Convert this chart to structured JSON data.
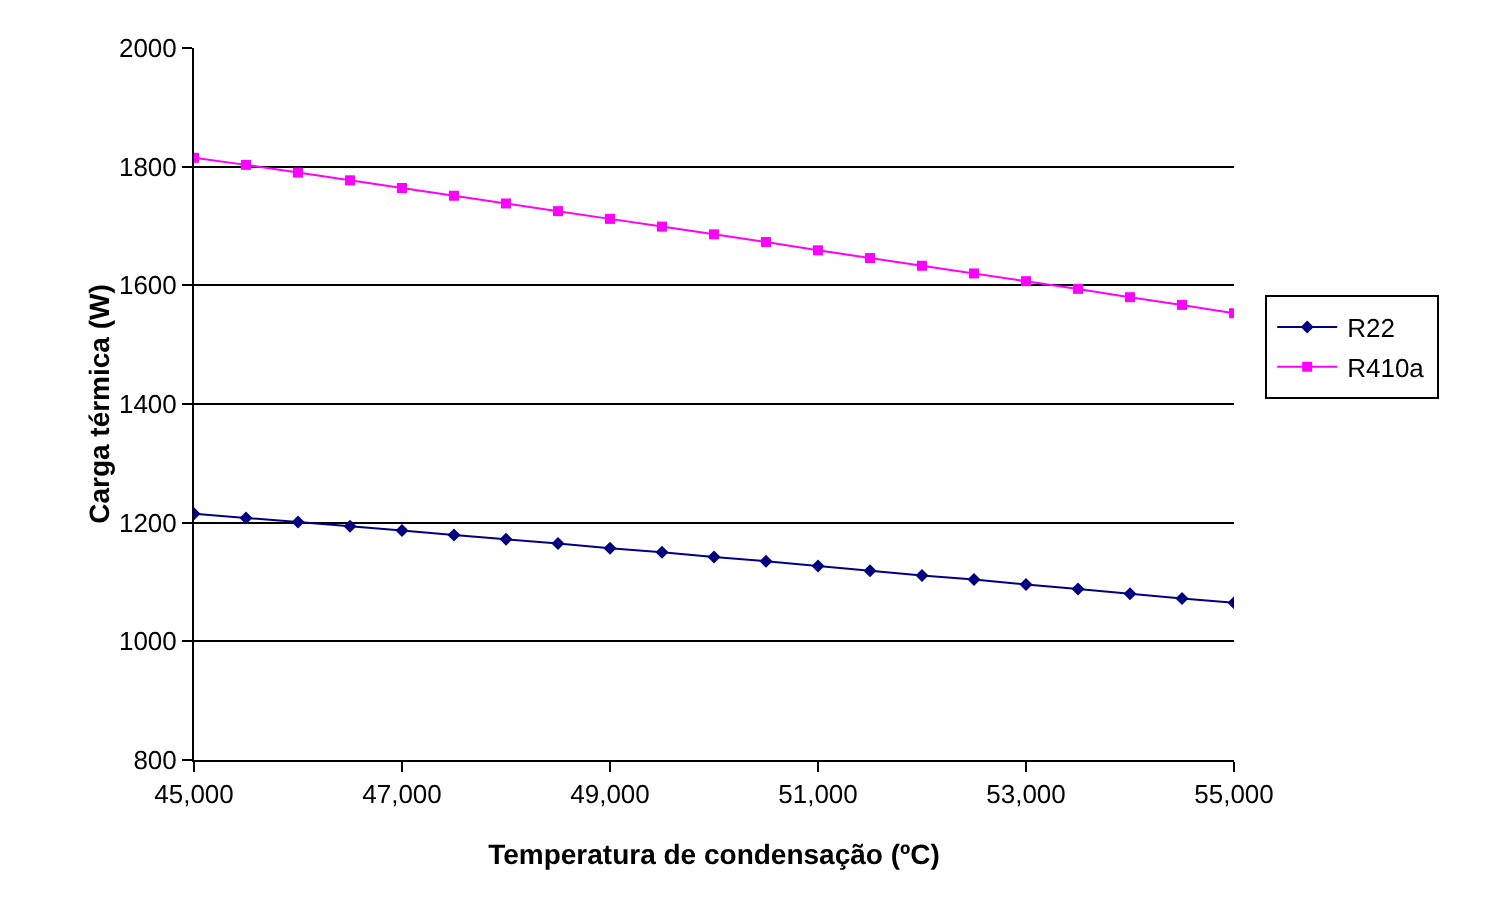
{
  "chart_data": {
    "type": "line",
    "xlabel": "Temperatura de condensação (ºC)",
    "ylabel": "Carga térmica (W)",
    "categories": [
      "45,000",
      null,
      null,
      null,
      "47,000",
      null,
      null,
      null,
      "49,000",
      null,
      null,
      null,
      "51,000",
      null,
      null,
      null,
      "53,000",
      null,
      null,
      null,
      "55,000"
    ],
    "series": [
      {
        "name": "R22",
        "color": "#000080",
        "marker": "diamond",
        "values": [
          1215,
          1208,
          1201,
          1194,
          1187,
          1179,
          1172,
          1165,
          1157,
          1150,
          1142,
          1135,
          1127,
          1119,
          1111,
          1104,
          1096,
          1088,
          1080,
          1072,
          1065
        ]
      },
      {
        "name": "R410a",
        "color": "#ff00ff",
        "marker": "square",
        "values": [
          1815,
          1803,
          1790,
          1777,
          1764,
          1751,
          1738,
          1725,
          1712,
          1699,
          1686,
          1673,
          1659,
          1646,
          1633,
          1620,
          1607,
          1594,
          1580,
          1567,
          1553
        ]
      }
    ],
    "ylim": [
      800,
      2000
    ],
    "yticks": [
      800,
      1000,
      1200,
      1400,
      1600,
      1800,
      2000
    ],
    "grid": "y",
    "legend": "right",
    "line_style": "solid"
  }
}
